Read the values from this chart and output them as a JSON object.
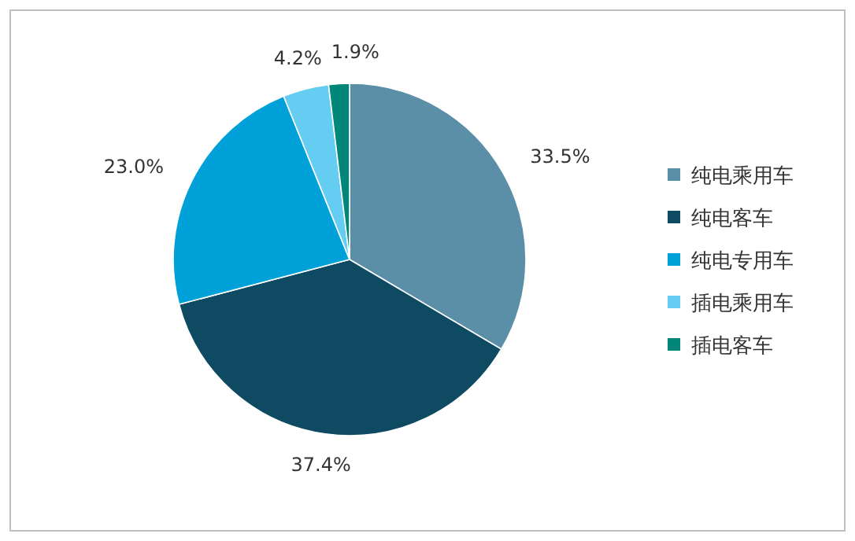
{
  "chart_data": {
    "type": "pie",
    "categories": [
      "纯电乘用车",
      "纯电客车",
      "纯电专用车",
      "插电乘用车",
      "插电客车"
    ],
    "values": [
      33.5,
      37.4,
      23.0,
      4.2,
      1.9
    ],
    "value_labels": [
      "33.5%",
      "37.4%",
      "23.0%",
      "4.2%",
      "1.9%"
    ],
    "colors": [
      "#5b8fa8",
      "#0e4a62",
      "#00a0d9",
      "#66cdf2",
      "#00877a"
    ],
    "legend": "right"
  }
}
